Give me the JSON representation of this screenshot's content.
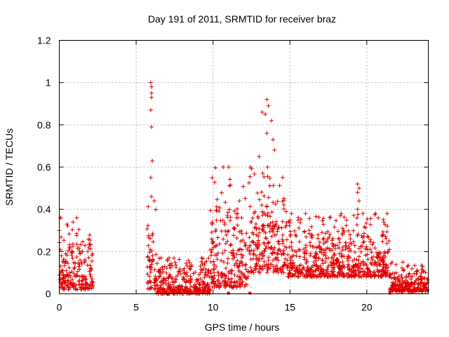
{
  "chart_data": {
    "type": "scatter",
    "title": "Day 191 of 2011, SRMTID for receiver braz",
    "xlabel": "GPS time / hours",
    "ylabel": "SRMTID / TECUs",
    "xlim": [
      0,
      24
    ],
    "ylim": [
      0,
      1.2
    ],
    "xticks": [
      0,
      5,
      10,
      15,
      20
    ],
    "yticks": [
      0,
      0.2,
      0.4,
      0.6,
      0.8,
      1,
      1.2
    ],
    "ytick_labels": [
      "0",
      "0.2",
      "0.4",
      "0.6",
      "0.8",
      "1",
      "1.2"
    ],
    "grid": true,
    "series": [
      {
        "name": "SRMTID",
        "color": "#e00000",
        "marker": "plus",
        "description": "dense scatter of crosses",
        "clusters": [
          {
            "x_start": 0.0,
            "x_end": 2.2,
            "y_low": 0.02,
            "y_high": 0.36,
            "outliers": [
              [
                0.9,
                0.34
              ],
              [
                0.5,
                0.33
              ],
              [
                0.0,
                0.3
              ]
            ]
          },
          {
            "x_start": 5.7,
            "x_end": 6.3,
            "y_low": 0.02,
            "y_high": 0.46,
            "outliers": [
              [
                5.95,
                1.0
              ],
              [
                6.0,
                0.98
              ],
              [
                6.0,
                0.95
              ],
              [
                6.0,
                0.93
              ],
              [
                5.95,
                0.87
              ],
              [
                6.0,
                0.79
              ],
              [
                6.05,
                0.63
              ],
              [
                5.95,
                0.55
              ]
            ]
          },
          {
            "x_start": 6.3,
            "x_end": 9.8,
            "y_low": 0.0,
            "y_high": 0.17,
            "outliers": []
          },
          {
            "x_start": 9.8,
            "x_end": 12.3,
            "y_low": 0.03,
            "y_high": 0.6,
            "outliers": []
          },
          {
            "x_start": 12.3,
            "x_end": 14.8,
            "y_low": 0.1,
            "y_high": 0.6,
            "outliers": [
              [
                13.5,
                0.92
              ],
              [
                13.6,
                0.89
              ],
              [
                13.4,
                0.85
              ],
              [
                13.2,
                0.86
              ],
              [
                13.8,
                0.82
              ],
              [
                13.5,
                0.76
              ],
              [
                13.9,
                0.73
              ],
              [
                14.0,
                0.68
              ],
              [
                13.0,
                0.65
              ]
            ]
          },
          {
            "x_start": 14.8,
            "x_end": 21.5,
            "y_low": 0.08,
            "y_high": 0.38,
            "outliers": [
              [
                19.4,
                0.52
              ],
              [
                19.5,
                0.5
              ],
              [
                19.4,
                0.48
              ],
              [
                19.5,
                0.44
              ],
              [
                19.4,
                0.4
              ]
            ]
          },
          {
            "x_start": 21.5,
            "x_end": 24.0,
            "y_low": 0.01,
            "y_high": 0.15,
            "outliers": []
          }
        ],
        "zero_points": [
          11.0,
          12.4,
          21.5
        ]
      }
    ]
  }
}
